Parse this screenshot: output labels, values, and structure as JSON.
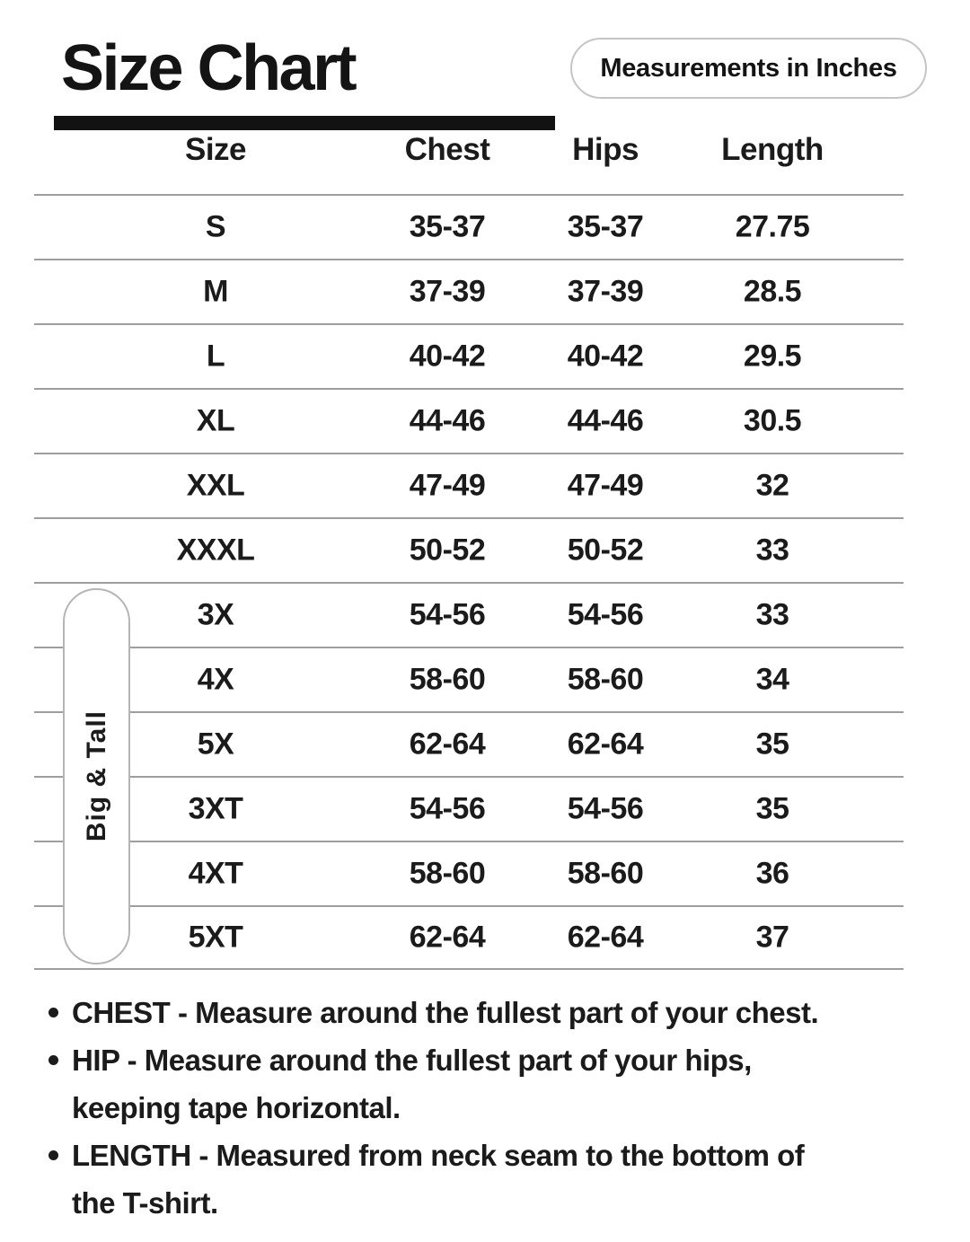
{
  "header": {
    "title": "Size Chart",
    "badge_label": "Measurements in Inches"
  },
  "table": {
    "columns": {
      "size": "Size",
      "chest": "Chest",
      "hips": "Hips",
      "length": "Length"
    },
    "group_label": "Big & Tall",
    "rows": [
      {
        "size": "S",
        "chest": "35-37",
        "hips": "35-37",
        "length": "27.75"
      },
      {
        "size": "M",
        "chest": "37-39",
        "hips": "37-39",
        "length": "28.5"
      },
      {
        "size": "L",
        "chest": "40-42",
        "hips": "40-42",
        "length": "29.5"
      },
      {
        "size": "XL",
        "chest": "44-46",
        "hips": "44-46",
        "length": "30.5"
      },
      {
        "size": "XXL",
        "chest": "47-49",
        "hips": "47-49",
        "length": "32"
      },
      {
        "size": "XXXL",
        "chest": "50-52",
        "hips": "50-52",
        "length": "33"
      },
      {
        "size": "3X",
        "chest": "54-56",
        "hips": "54-56",
        "length": "33"
      },
      {
        "size": "4X",
        "chest": "58-60",
        "hips": "58-60",
        "length": "34"
      },
      {
        "size": "5X",
        "chest": "62-64",
        "hips": "62-64",
        "length": "35"
      },
      {
        "size": "3XT",
        "chest": "54-56",
        "hips": "54-56",
        "length": "35"
      },
      {
        "size": "4XT",
        "chest": "58-60",
        "hips": "58-60",
        "length": "36"
      },
      {
        "size": "5XT",
        "chest": "62-64",
        "hips": "62-64",
        "length": "37"
      }
    ]
  },
  "notes": {
    "bullet_1": {
      "line_1": "CHEST - Measure around the fullest part of your chest."
    },
    "bullet_2": {
      "line_1": "HIP - Measure around the fullest part of your hips,",
      "line_2": "keeping tape horizontal."
    },
    "bullet_3": {
      "line_1": "LENGTH - Measured from neck seam to the bottom of",
      "line_2": "the T-shirt."
    }
  },
  "colors": {
    "text": "#1a1a1a",
    "divider": "#9e9e9e",
    "capsule_border": "#b5b5b5",
    "badge_border": "#c5c5c5",
    "title_bar": "#121212"
  }
}
